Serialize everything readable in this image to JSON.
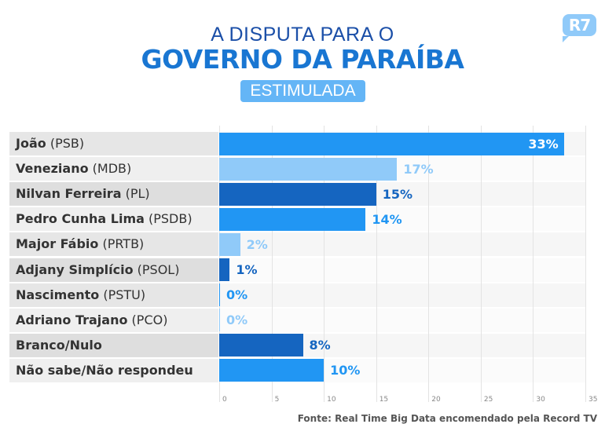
{
  "header": {
    "title_line1": "A DISPUTA PARA O",
    "title_line2": "GOVERNO DA PARAÍBA",
    "badge": "ESTIMULADA",
    "logo": "R7"
  },
  "colors": {
    "medium": "#2196f3",
    "light": "#90caf9",
    "dark": "#1565c0",
    "title": "#1976d2"
  },
  "chart_data": {
    "type": "bar",
    "orientation": "horizontal",
    "categories": [
      {
        "name": "João",
        "party": "(PSB)"
      },
      {
        "name": "Veneziano",
        "party": "(MDB)"
      },
      {
        "name": "Nilvan Ferreira",
        "party": "(PL)"
      },
      {
        "name": "Pedro Cunha Lima",
        "party": "(PSDB)"
      },
      {
        "name": "Major Fábio",
        "party": "(PRTB)"
      },
      {
        "name": "Adjany Simplício",
        "party": "(PSOL)"
      },
      {
        "name": "Nascimento",
        "party": "(PSTU)"
      },
      {
        "name": "Adriano Trajano",
        "party": "(PCO)"
      },
      {
        "name": "Branco/Nulo",
        "party": ""
      },
      {
        "name": "Não sabe/Não respondeu",
        "party": ""
      }
    ],
    "values": [
      33,
      17,
      15,
      14,
      2,
      1,
      0,
      0,
      8,
      10
    ],
    "data_labels": [
      "33%",
      "17%",
      "15%",
      "14%",
      "2%",
      "1%",
      "0%",
      "0%",
      "8%",
      "10%"
    ],
    "bar_colors": [
      "medium",
      "light",
      "dark",
      "medium",
      "light",
      "dark",
      "medium",
      "light",
      "dark",
      "medium"
    ],
    "xlim": [
      0,
      35
    ],
    "xticks": [
      "0",
      "5",
      "10",
      "15",
      "20",
      "25",
      "30",
      "35"
    ],
    "grid": true
  },
  "source": "Fonte: Real Time Big Data encomendado pela Record TV"
}
